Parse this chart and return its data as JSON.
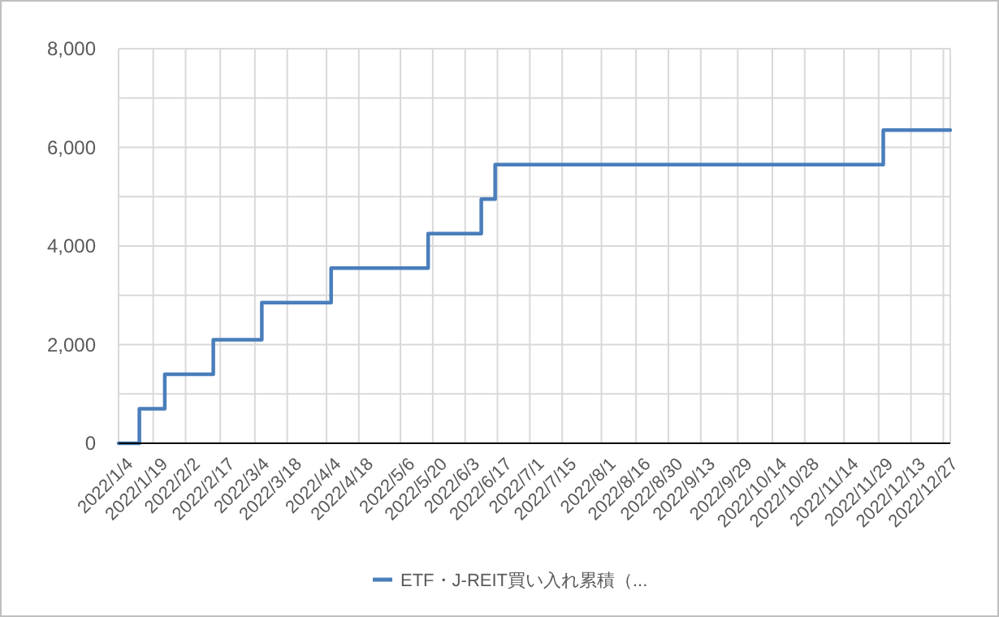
{
  "chart_data": {
    "type": "step",
    "x": [
      "2022-01-04",
      "2022-01-13",
      "2022-01-24",
      "2022-02-14",
      "2022-03-07",
      "2022-04-06",
      "2022-05-18",
      "2022-06-10",
      "2022-06-16",
      "2022-12-01",
      "2022-12-30"
    ],
    "series": [
      {
        "name": "ETF・J-REIT買い入れ累積（...",
        "color": "#4a7ebb",
        "values": [
          0,
          700,
          1400,
          2100,
          2850,
          3550,
          4250,
          4950,
          5650,
          6350,
          6350
        ]
      }
    ],
    "xlim": [
      "2022-01-04",
      "2022-12-30"
    ],
    "xticks": [
      {
        "value": "2022-01-04",
        "label": "2022/1/4"
      },
      {
        "value": "2022-01-19",
        "label": "2022/1/19"
      },
      {
        "value": "2022-02-02",
        "label": "2022/2/2"
      },
      {
        "value": "2022-02-17",
        "label": "2022/2/17"
      },
      {
        "value": "2022-03-04",
        "label": "2022/3/4"
      },
      {
        "value": "2022-03-18",
        "label": "2022/3/18"
      },
      {
        "value": "2022-04-04",
        "label": "2022/4/4"
      },
      {
        "value": "2022-04-18",
        "label": "2022/4/18"
      },
      {
        "value": "2022-05-06",
        "label": "2022/5/6"
      },
      {
        "value": "2022-05-20",
        "label": "2022/5/20"
      },
      {
        "value": "2022-06-03",
        "label": "2022/6/3"
      },
      {
        "value": "2022-06-17",
        "label": "2022/6/17"
      },
      {
        "value": "2022-07-01",
        "label": "2022/7/1"
      },
      {
        "value": "2022-07-15",
        "label": "2022/7/15"
      },
      {
        "value": "2022-08-01",
        "label": "2022/8/1"
      },
      {
        "value": "2022-08-16",
        "label": "2022/8/16"
      },
      {
        "value": "2022-08-30",
        "label": "2022/8/30"
      },
      {
        "value": "2022-09-13",
        "label": "2022/9/13"
      },
      {
        "value": "2022-09-29",
        "label": "2022/9/29"
      },
      {
        "value": "2022-10-14",
        "label": "2022/10/14"
      },
      {
        "value": "2022-10-28",
        "label": "2022/10/28"
      },
      {
        "value": "2022-11-14",
        "label": "2022/11/14"
      },
      {
        "value": "2022-11-29",
        "label": "2022/11/29"
      },
      {
        "value": "2022-12-13",
        "label": "2022/12/13"
      },
      {
        "value": "2022-12-27",
        "label": "2022/12/27"
      }
    ],
    "ylim": [
      0,
      8000
    ],
    "yticks": [
      {
        "value": 0,
        "label": "0"
      },
      {
        "value": 1000,
        "label": null
      },
      {
        "value": 2000,
        "label": "2,000"
      },
      {
        "value": 3000,
        "label": null
      },
      {
        "value": 4000,
        "label": "4,000"
      },
      {
        "value": 5000,
        "label": null
      },
      {
        "value": 6000,
        "label": "6,000"
      },
      {
        "value": 7000,
        "label": null
      },
      {
        "value": 8000,
        "label": "8,000"
      }
    ],
    "grid": true,
    "legend": "bottom",
    "marker": "none",
    "line_style": "solid"
  }
}
